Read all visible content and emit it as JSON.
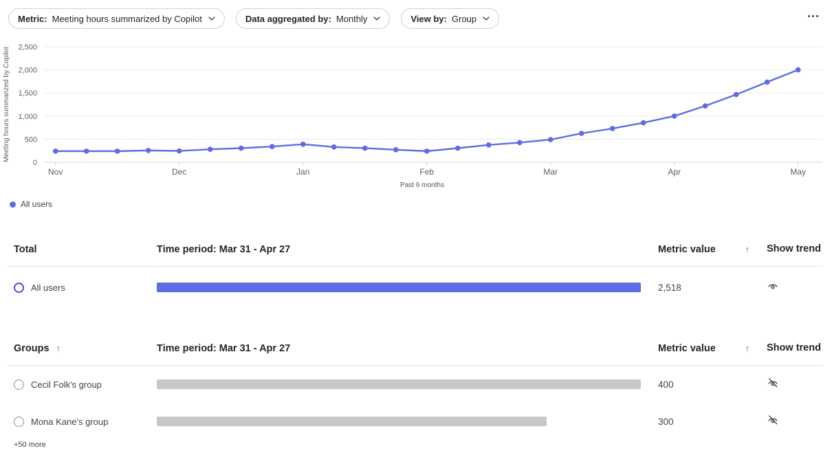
{
  "toolbar": {
    "filters": [
      {
        "label": "Metric:",
        "value": "Meeting hours summarized by Copilot"
      },
      {
        "label": "Data aggregated by:",
        "value": "Monthly"
      },
      {
        "label": "View by:",
        "value": "Group"
      }
    ]
  },
  "icons": {
    "more_options": "horizontal-ellipsis",
    "pill_chevron": "chevron-down",
    "show_trend_on": "eye",
    "show_trend_off": "eye-slash"
  },
  "colors": {
    "series_blue": "#5e6de1",
    "sort_arrow_blue": "#4668e8",
    "bar_gray": "#c8c8c8",
    "selected_radio_blue": "#4452c8"
  },
  "chart_data": {
    "type": "line",
    "title": "",
    "ylabel": "Meeting hours summarized by Copilot",
    "xlabel": "Past 6 months",
    "ylim": [
      0,
      2500
    ],
    "grid": true,
    "legend_position": "bottom-left",
    "yticks": [
      0,
      500,
      1000,
      1500,
      2000,
      2500
    ],
    "ytick_labels": [
      "0",
      "500",
      "1,000",
      "1,500",
      "2,000",
      "2,500"
    ],
    "x_unit": "week",
    "month_ticks": [
      {
        "label": "Nov",
        "week": 0
      },
      {
        "label": "Dec",
        "week": 4
      },
      {
        "label": "Jan",
        "week": 8
      },
      {
        "label": "Feb",
        "week": 12
      },
      {
        "label": "Mar",
        "week": 16
      },
      {
        "label": "Apr",
        "week": 20
      },
      {
        "label": "May",
        "week": 24
      }
    ],
    "series": [
      {
        "name": "All users",
        "color": "#5e6de1",
        "values": [
          240,
          240,
          240,
          255,
          245,
          280,
          305,
          340,
          390,
          330,
          305,
          270,
          240,
          305,
          375,
          425,
          490,
          625,
          730,
          855,
          1000,
          1220,
          1465,
          1735,
          2000
        ]
      }
    ]
  },
  "legend": {
    "items": [
      {
        "label": "All users",
        "color": "#5e6de1"
      }
    ]
  },
  "total_table": {
    "headers": {
      "col1": "Total",
      "col2": "Time period: Mar 31 - Apr 27",
      "col3": "Metric value",
      "sort_arrow": "↑",
      "col4": "Show trend"
    },
    "rows": [
      {
        "label": "All users",
        "value": "2,518",
        "bar_pct": 100,
        "bar_color": "#5e6de1",
        "selected": true,
        "trend_visible": true
      }
    ]
  },
  "groups_table": {
    "headers": {
      "col1": "Groups",
      "col1_sort": "↑",
      "col2": "Time period: Mar 31 - Apr 27",
      "col3": "Metric value",
      "sort_arrow": "↑",
      "col4": "Show trend"
    },
    "rows": [
      {
        "label": "Cecil Folk's group",
        "value": "400",
        "bar_pct": 100,
        "bar_color": "#c8c8c8",
        "selected": false,
        "trend_visible": false
      },
      {
        "label": "Mona Kane's group",
        "value": "300",
        "bar_pct": 80.5,
        "bar_color": "#c8c8c8",
        "selected": false,
        "trend_visible": false
      }
    ],
    "footer": "+50 more"
  }
}
